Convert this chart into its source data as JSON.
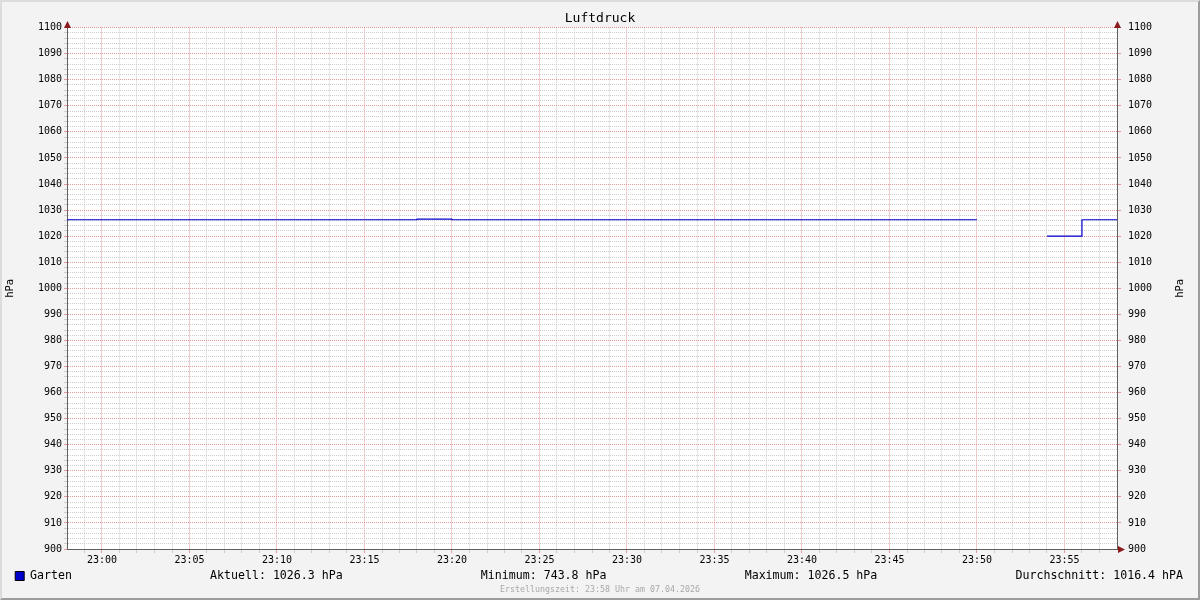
{
  "chart_data": {
    "type": "step",
    "title": "Luftdruck",
    "ylabel": "hPa",
    "y2label": "hPa",
    "series": [
      {
        "name": "Garten",
        "color": "#0000cc",
        "x": [
          22.9667,
          23.3,
          23.3333,
          23.8333,
          23.8667,
          23.9,
          23.9333,
          23.9667
        ],
        "values": [
          1026.3,
          1026.5,
          1026.3,
          1026.3,
          null,
          1020,
          1026.3,
          1026.3
        ]
      }
    ],
    "xlim": [
      22.9667,
      23.9667
    ],
    "xticks": [
      {
        "value": 22.9833,
        "label": null
      },
      {
        "value": 23,
        "label": "23:00"
      },
      {
        "value": 23.0167,
        "label": null
      },
      {
        "value": 23.0333,
        "label": null
      },
      {
        "value": 23.05,
        "label": null
      },
      {
        "value": 23.0667,
        "label": null
      },
      {
        "value": 23.0833,
        "label": "23:05"
      },
      {
        "value": 23.1,
        "label": null
      },
      {
        "value": 23.1167,
        "label": null
      },
      {
        "value": 23.1333,
        "label": null
      },
      {
        "value": 23.15,
        "label": null
      },
      {
        "value": 23.1667,
        "label": "23:10"
      },
      {
        "value": 23.1833,
        "label": null
      },
      {
        "value": 23.2,
        "label": null
      },
      {
        "value": 23.2167,
        "label": null
      },
      {
        "value": 23.2333,
        "label": null
      },
      {
        "value": 23.25,
        "label": "23:15"
      },
      {
        "value": 23.2667,
        "label": null
      },
      {
        "value": 23.2833,
        "label": null
      },
      {
        "value": 23.3,
        "label": null
      },
      {
        "value": 23.3167,
        "label": null
      },
      {
        "value": 23.3333,
        "label": "23:20"
      },
      {
        "value": 23.35,
        "label": null
      },
      {
        "value": 23.3667,
        "label": null
      },
      {
        "value": 23.3833,
        "label": null
      },
      {
        "value": 23.4,
        "label": null
      },
      {
        "value": 23.4167,
        "label": "23:25"
      },
      {
        "value": 23.4333,
        "label": null
      },
      {
        "value": 23.45,
        "label": null
      },
      {
        "value": 23.4667,
        "label": null
      },
      {
        "value": 23.4833,
        "label": null
      },
      {
        "value": 23.5,
        "label": "23:30"
      },
      {
        "value": 23.5167,
        "label": null
      },
      {
        "value": 23.5333,
        "label": null
      },
      {
        "value": 23.55,
        "label": null
      },
      {
        "value": 23.5667,
        "label": null
      },
      {
        "value": 23.5833,
        "label": "23:35"
      },
      {
        "value": 23.6,
        "label": null
      },
      {
        "value": 23.6167,
        "label": null
      },
      {
        "value": 23.6333,
        "label": null
      },
      {
        "value": 23.65,
        "label": null
      },
      {
        "value": 23.6667,
        "label": "23:40"
      },
      {
        "value": 23.6833,
        "label": null
      },
      {
        "value": 23.7,
        "label": null
      },
      {
        "value": 23.7167,
        "label": null
      },
      {
        "value": 23.7333,
        "label": null
      },
      {
        "value": 23.75,
        "label": "23:45"
      },
      {
        "value": 23.7667,
        "label": null
      },
      {
        "value": 23.7833,
        "label": null
      },
      {
        "value": 23.8,
        "label": null
      },
      {
        "value": 23.8167,
        "label": null
      },
      {
        "value": 23.8333,
        "label": "23:50"
      },
      {
        "value": 23.85,
        "label": null
      },
      {
        "value": 23.8667,
        "label": null
      },
      {
        "value": 23.8833,
        "label": null
      },
      {
        "value": 23.9,
        "label": null
      },
      {
        "value": 23.9167,
        "label": "23:55"
      },
      {
        "value": 23.9333,
        "label": null
      },
      {
        "value": 23.95,
        "label": null
      }
    ],
    "ylim": [
      900,
      1100
    ],
    "yticks": [
      900,
      {
        "value": 902,
        "label": null
      },
      {
        "value": 904,
        "label": null
      },
      {
        "value": 906,
        "label": null
      },
      {
        "value": 908,
        "label": null
      },
      910,
      {
        "value": 912,
        "label": null
      },
      {
        "value": 914,
        "label": null
      },
      {
        "value": 916,
        "label": null
      },
      {
        "value": 918,
        "label": null
      },
      920,
      {
        "value": 922,
        "label": null
      },
      {
        "value": 924,
        "label": null
      },
      {
        "value": 926,
        "label": null
      },
      {
        "value": 928,
        "label": null
      },
      930,
      {
        "value": 932,
        "label": null
      },
      {
        "value": 934,
        "label": null
      },
      {
        "value": 936,
        "label": null
      },
      {
        "value": 938,
        "label": null
      },
      940,
      {
        "value": 942,
        "label": null
      },
      {
        "value": 944,
        "label": null
      },
      {
        "value": 946,
        "label": null
      },
      {
        "value": 948,
        "label": null
      },
      950,
      {
        "value": 952,
        "label": null
      },
      {
        "value": 954,
        "label": null
      },
      {
        "value": 956,
        "label": null
      },
      {
        "value": 958,
        "label": null
      },
      960,
      {
        "value": 962,
        "label": null
      },
      {
        "value": 964,
        "label": null
      },
      {
        "value": 966,
        "label": null
      },
      {
        "value": 968,
        "label": null
      },
      970,
      {
        "value": 972,
        "label": null
      },
      {
        "value": 974,
        "label": null
      },
      {
        "value": 976,
        "label": null
      },
      {
        "value": 978,
        "label": null
      },
      980,
      {
        "value": 982,
        "label": null
      },
      {
        "value": 984,
        "label": null
      },
      {
        "value": 986,
        "label": null
      },
      {
        "value": 988,
        "label": null
      },
      990,
      {
        "value": 992,
        "label": null
      },
      {
        "value": 994,
        "label": null
      },
      {
        "value": 996,
        "label": null
      },
      {
        "value": 998,
        "label": null
      },
      1000,
      {
        "value": 1002,
        "label": null
      },
      {
        "value": 1004,
        "label": null
      },
      {
        "value": 1006,
        "label": null
      },
      {
        "value": 1008,
        "label": null
      },
      1010,
      {
        "value": 1012,
        "label": null
      },
      {
        "value": 1014,
        "label": null
      },
      {
        "value": 1016,
        "label": null
      },
      {
        "value": 1018,
        "label": null
      },
      1020,
      {
        "value": 1022,
        "label": null
      },
      {
        "value": 1024,
        "label": null
      },
      {
        "value": 1026,
        "label": null
      },
      {
        "value": 1028,
        "label": null
      },
      1030,
      {
        "value": 1032,
        "label": null
      },
      {
        "value": 1034,
        "label": null
      },
      {
        "value": 1036,
        "label": null
      },
      {
        "value": 1038,
        "label": null
      },
      1040,
      {
        "value": 1042,
        "label": null
      },
      {
        "value": 1044,
        "label": null
      },
      {
        "value": 1046,
        "label": null
      },
      {
        "value": 1048,
        "label": null
      },
      1050,
      {
        "value": 1052,
        "label": null
      },
      {
        "value": 1054,
        "label": null
      },
      {
        "value": 1056,
        "label": null
      },
      {
        "value": 1058,
        "label": null
      },
      1060,
      {
        "value": 1062,
        "label": null
      },
      {
        "value": 1064,
        "label": null
      },
      {
        "value": 1066,
        "label": null
      },
      {
        "value": 1068,
        "label": null
      },
      1070,
      {
        "value": 1072,
        "label": null
      },
      {
        "value": 1074,
        "label": null
      },
      {
        "value": 1076,
        "label": null
      },
      {
        "value": 1078,
        "label": null
      },
      1080,
      {
        "value": 1082,
        "label": null
      },
      {
        "value": 1084,
        "label": null
      },
      {
        "value": 1086,
        "label": null
      },
      {
        "value": 1088,
        "label": null
      },
      1090,
      {
        "value": 1092,
        "label": null
      },
      {
        "value": 1094,
        "label": null
      },
      {
        "value": 1096,
        "label": null
      },
      {
        "value": 1098,
        "label": null
      },
      1100
    ],
    "y2lim": [
      900,
      1100
    ],
    "y2ticks": [
      900,
      910,
      920,
      930,
      940,
      950,
      960,
      970,
      980,
      990,
      1000,
      1010,
      1020,
      1030,
      1040,
      1050,
      1060,
      1070,
      1080,
      1090,
      1100
    ],
    "grid": true,
    "legend": "bottom left",
    "annotations": [
      "Aktuell: 1026.3 hPa",
      "Minimum: 743.8 hPa",
      "Maximum: 1026.5 hPa",
      "Durchschnitt: 1016.4 hPA",
      "Erstellungszeit: 23:58 Uhr am 07.04.2026"
    ]
  }
}
